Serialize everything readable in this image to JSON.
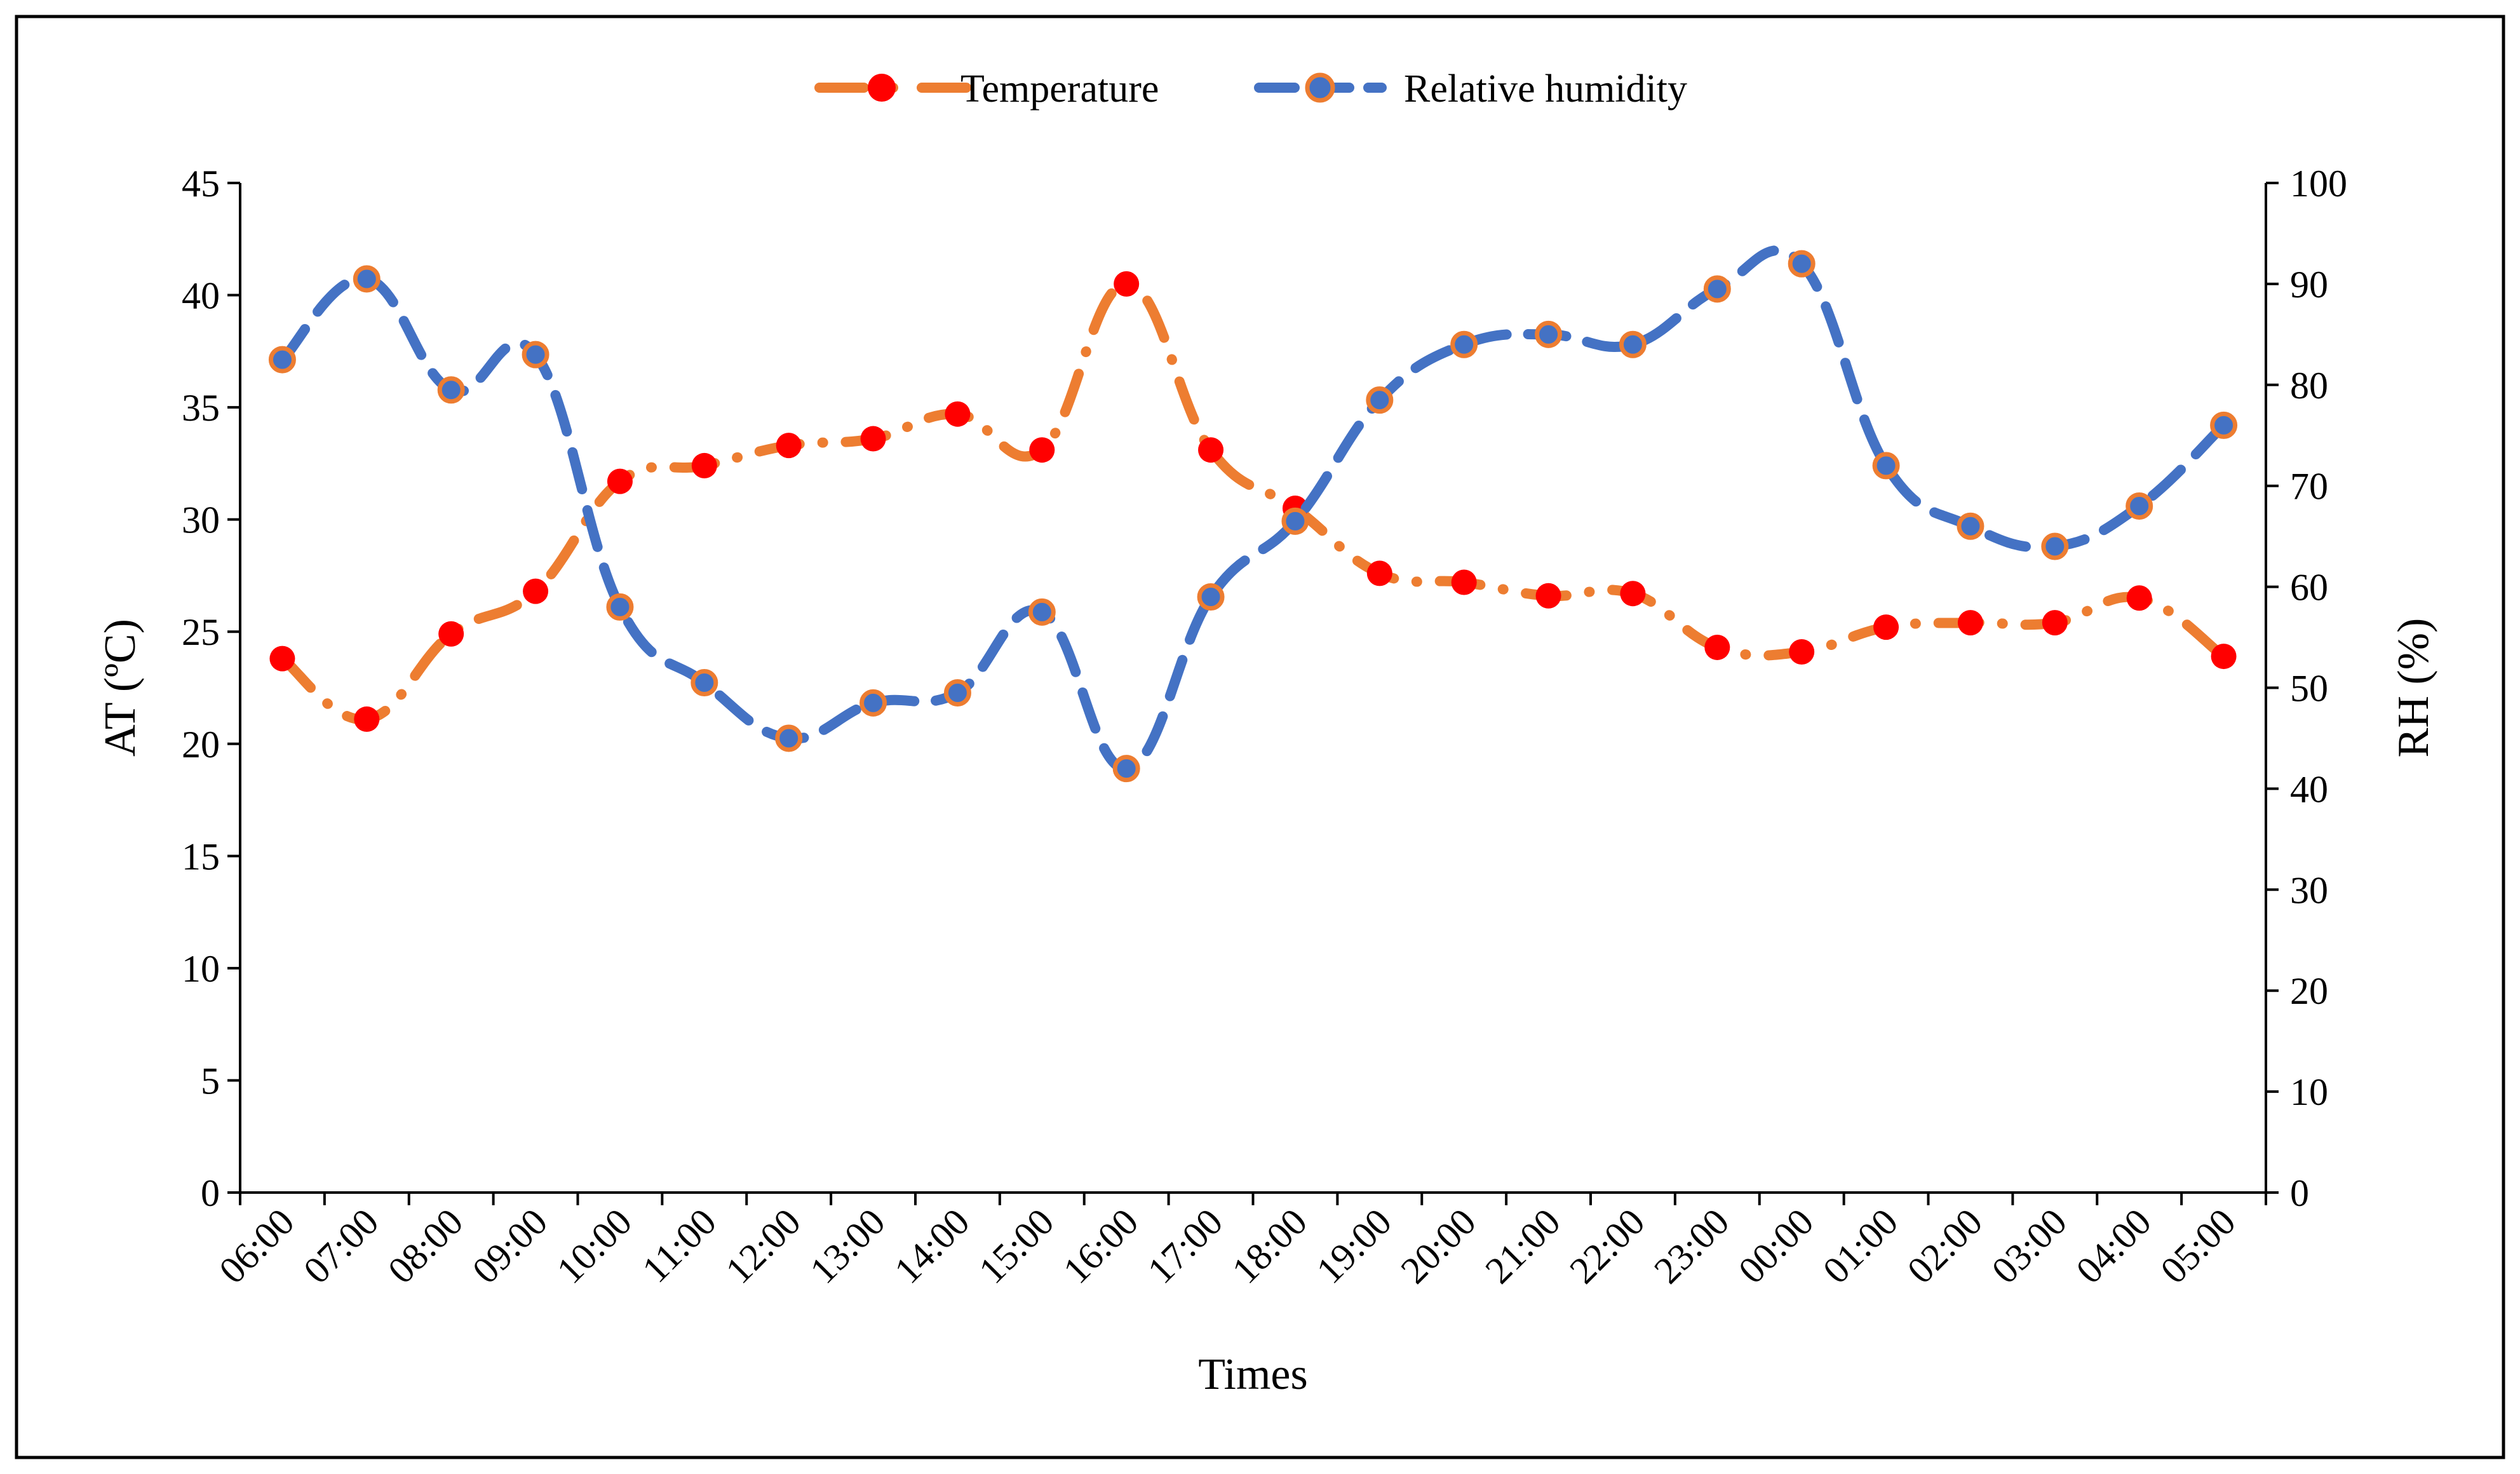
{
  "chart_data": {
    "type": "line",
    "title": "",
    "xlabel": "Times",
    "ylabel_left": "AT (ºC)",
    "ylabel_right": "RH (%)",
    "categories": [
      "06:00",
      "07:00",
      "08:00",
      "09:00",
      "10:00",
      "11:00",
      "12:00",
      "13:00",
      "14:00",
      "15:00",
      "16:00",
      "17:00",
      "18:00",
      "19:00",
      "20:00",
      "21:00",
      "22:00",
      "23:00",
      "00:00",
      "01:00",
      "02:00",
      "03:00",
      "04:00",
      "05:00"
    ],
    "ylim_left": [
      0,
      45
    ],
    "yticks_left": [
      0,
      5,
      10,
      15,
      20,
      25,
      30,
      35,
      40,
      45
    ],
    "ylim_right": [
      0,
      100
    ],
    "yticks_right": [
      0,
      10,
      20,
      30,
      40,
      50,
      60,
      70,
      80,
      90,
      100
    ],
    "legend_position": "top-center",
    "grid": false,
    "series": [
      {
        "name": "Temperature",
        "axis": "left",
        "line_color": "#ED7D31",
        "marker_color": "#FF0000",
        "values": [
          23.8,
          21.1,
          24.9,
          26.8,
          31.7,
          32.4,
          33.3,
          33.6,
          34.7,
          33.1,
          40.5,
          33.1,
          30.5,
          27.6,
          27.2,
          26.6,
          26.7,
          24.3,
          24.1,
          25.2,
          25.4,
          25.4,
          26.5,
          23.9
        ]
      },
      {
        "name": "Relative humidity",
        "axis": "right",
        "line_color": "#4472C4",
        "marker_color": "#4472C4",
        "marker_edge": "#ED7D31",
        "values": [
          82.5,
          90.5,
          79.5,
          83.0,
          58.0,
          50.5,
          45.0,
          48.5,
          49.5,
          57.5,
          42.0,
          59.0,
          66.5,
          78.5,
          84.0,
          85.0,
          84.0,
          89.5,
          92.0,
          72.0,
          66.0,
          64.0,
          68.0,
          76.0
        ]
      }
    ]
  }
}
